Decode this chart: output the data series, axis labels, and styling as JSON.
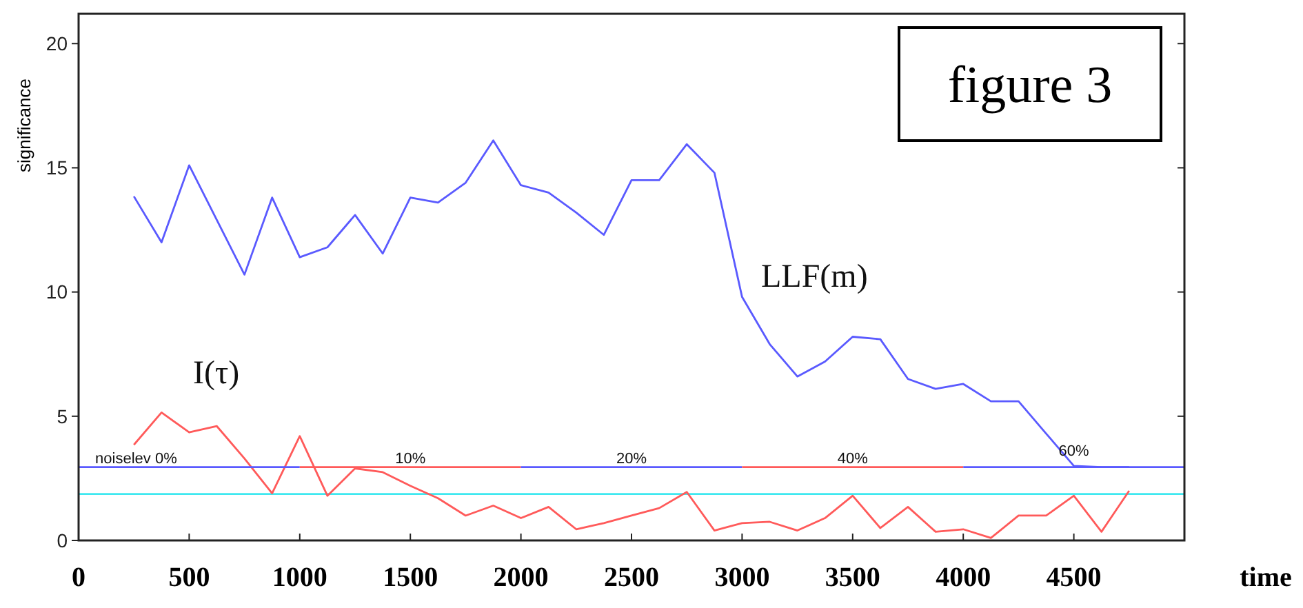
{
  "chart_data": {
    "type": "line",
    "xlabel": "time",
    "ylabel": "significance",
    "x": [
      250,
      375,
      500,
      625,
      750,
      875,
      1000,
      1125,
      1250,
      1375,
      1500,
      1625,
      1750,
      1875,
      2000,
      2125,
      2250,
      2375,
      2500,
      2625,
      2750,
      2875,
      3000,
      3125,
      3250,
      3375,
      3500,
      3625,
      3750,
      3875,
      4000,
      4125,
      4250,
      4375,
      4500,
      4625,
      4750
    ],
    "xlim": [
      0,
      5000
    ],
    "xticks": [
      0,
      500,
      1000,
      1500,
      2000,
      2500,
      3000,
      3500,
      4000,
      4500
    ],
    "ylim": [
      0,
      21.2
    ],
    "yticks": [
      0,
      5,
      10,
      15,
      20
    ],
    "grid": false,
    "line_style": "solid",
    "marker": "none",
    "series": [
      {
        "color": "#5a5aff",
        "values": [
          13.85,
          12.0,
          15.1,
          12.9,
          10.7,
          13.8,
          11.4,
          11.8,
          13.1,
          11.55,
          13.8,
          13.6,
          14.4,
          16.1,
          14.3,
          14.0,
          13.2,
          12.3,
          14.5,
          14.5,
          15.95,
          14.8,
          9.8,
          7.9,
          6.6,
          7.2,
          8.2,
          8.1,
          6.5,
          6.1,
          6.3,
          5.6,
          5.6,
          4.3,
          3.0,
          2.95,
          2.95
        ]
      },
      {
        "color": "#ff5a5a",
        "values": [
          3.85,
          5.15,
          4.35,
          4.6,
          3.3,
          1.9,
          4.2,
          1.8,
          2.9,
          2.75,
          2.2,
          1.7,
          1.0,
          1.4,
          0.9,
          1.35,
          0.45,
          0.7,
          1.0,
          1.3,
          1.95,
          0.4,
          0.7,
          0.75,
          0.4,
          0.9,
          1.8,
          0.5,
          1.35,
          0.35,
          0.45,
          0.1,
          1.0,
          1.0,
          1.8,
          0.35,
          2.0
        ]
      },
      {
        "color": "#5a5aff",
        "x": [
          0,
          1000
        ],
        "values": [
          2.95,
          2.95
        ]
      },
      {
        "color": "#ff5a5a",
        "x": [
          1000,
          2000
        ],
        "values": [
          2.95,
          2.95
        ]
      },
      {
        "color": "#5a5aff",
        "x": [
          2000,
          3000
        ],
        "values": [
          2.95,
          2.95
        ]
      },
      {
        "color": "#ff5a5a",
        "x": [
          3000,
          4000
        ],
        "values": [
          2.95,
          2.95
        ]
      },
      {
        "color": "#5a5aff",
        "x": [
          4000,
          5000
        ],
        "values": [
          2.95,
          2.95
        ]
      }
    ],
    "ref_lines": [
      {
        "axis": "y",
        "value": 1.87,
        "color": "#40e8f0"
      }
    ],
    "annotations": [
      "I(τ)",
      "LLF(m)",
      {
        "text": "noiselev 0%",
        "x": 260,
        "y": 3.1
      },
      {
        "text": "10%",
        "x": 1500,
        "y": 3.1
      },
      {
        "text": "20%",
        "x": 2500,
        "y": 3.1
      },
      {
        "text": "40%",
        "x": 3500,
        "y": 3.1
      },
      {
        "text": "60%",
        "x": 4500,
        "y": 3.4
      },
      "figure 3"
    ]
  }
}
